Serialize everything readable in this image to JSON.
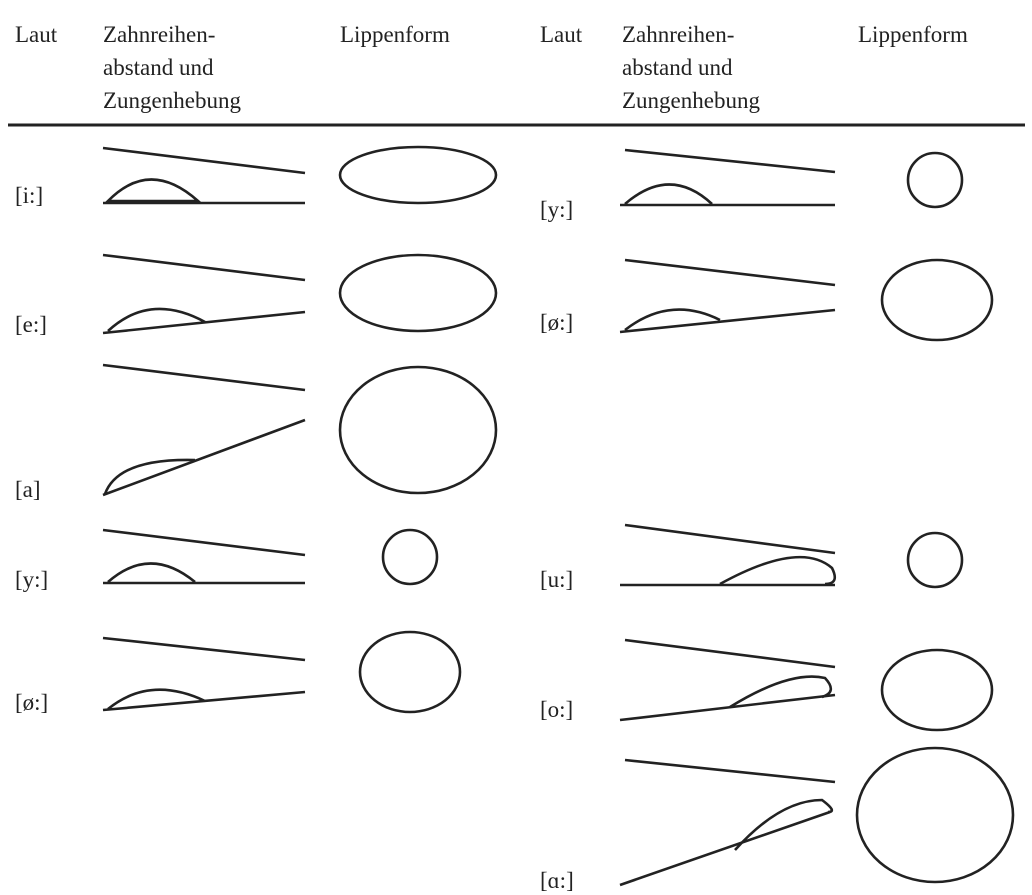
{
  "headers": [
    [
      "Laut"
    ],
    [
      "Zahnreihen-",
      "abstand und",
      "Zungenhebung"
    ],
    [
      "Lippenform"
    ],
    [
      "Laut"
    ],
    [
      "Zahnreihen-",
      "abstand und",
      "Zungenhebung"
    ],
    [
      "Lippenform"
    ]
  ],
  "left_rows": [
    "[i:]",
    "[e:]",
    "[a]",
    "[y:]",
    "[ø:]"
  ],
  "right_rows": [
    "[y:]",
    "[ø:]",
    "[u:]",
    "[o:]",
    "[ɑ:]"
  ]
}
